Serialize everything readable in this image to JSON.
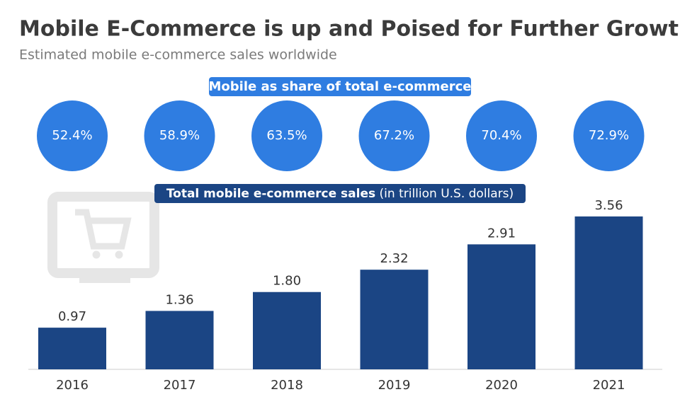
{
  "chart_data": {
    "type": "bar",
    "title": "Mobile E-Commerce is up and Poised for Further Growth",
    "subtitle": "Estimated mobile e-commerce sales worldwide",
    "share_label": "Mobile as share of total e-commerce",
    "share_values": [
      52.4,
      58.9,
      63.5,
      67.2,
      70.4,
      72.9
    ],
    "share_value_labels": [
      "52.4%",
      "58.9%",
      "63.5%",
      "67.2%",
      "70.4%",
      "72.9%"
    ],
    "share_color": "#2f7de1",
    "sales_label": "Total mobile e-commerce sales",
    "sales_unit": "(in trillion U.S. dollars)",
    "categories": [
      "2016",
      "2017",
      "2018",
      "2019",
      "2020",
      "2021"
    ],
    "values": [
      0.97,
      1.36,
      1.8,
      2.32,
      2.91,
      3.56
    ],
    "value_labels": [
      "0.97",
      "1.36",
      "1.80",
      "2.32",
      "2.91",
      "3.56"
    ],
    "color": "#1b4584"
  }
}
